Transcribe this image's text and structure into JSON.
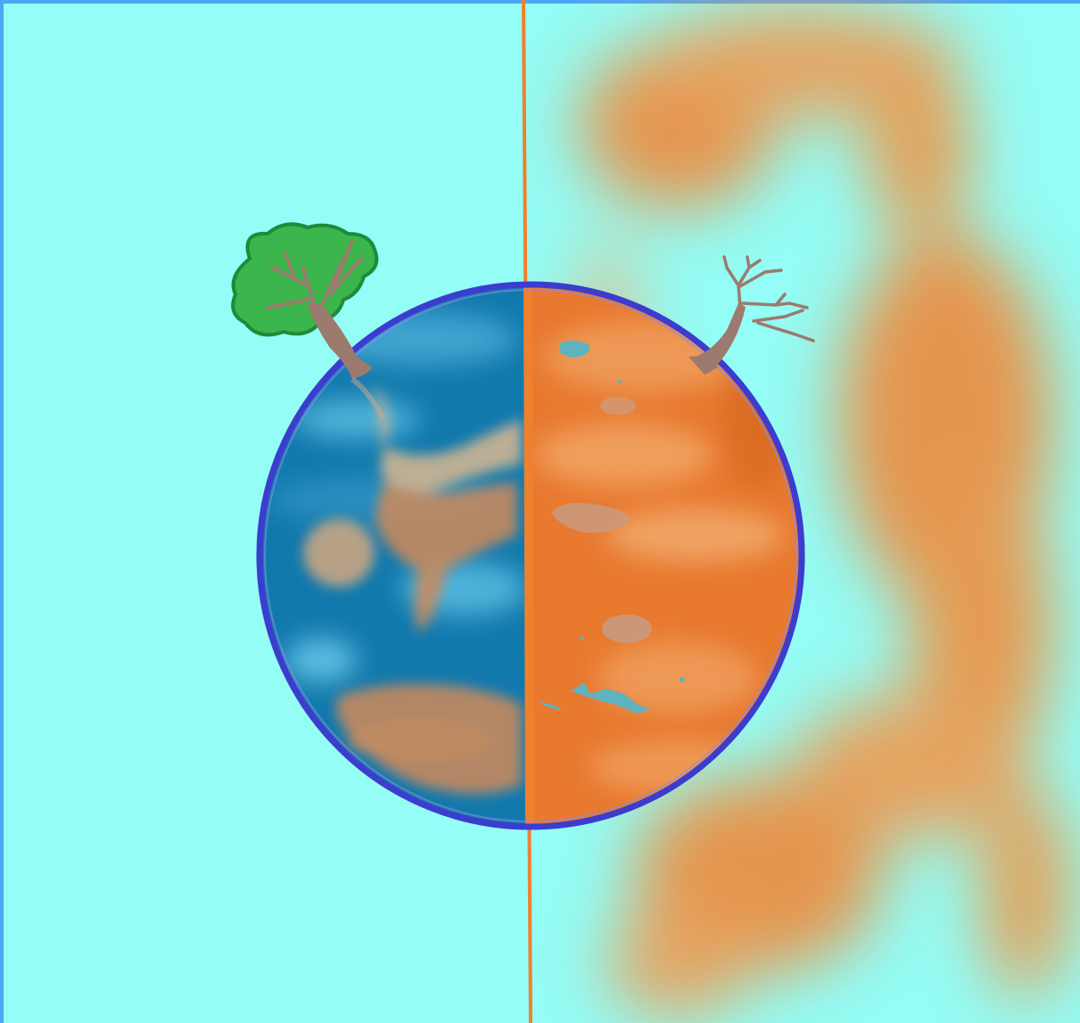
{
  "illustration": {
    "colors": {
      "frame_blue": "#4ea6f4",
      "sky_cyan": "#93fdf6",
      "healthy_ocean": "#1279ad",
      "healthy_ocean_light": "#3fa3cf",
      "planet_outline": "#3c3ccf",
      "scorched_orange": "#e8792f",
      "haze_orange": "#ef8a3a",
      "divider_orange": "#f0802e",
      "tree_green": "#3bb54c",
      "tree_green_outline": "#1f8a3a",
      "trunk_brown": "#9c7a6e",
      "dry_lake_teal": "#5fb3bf"
    },
    "icons": [
      "green-tree-icon",
      "dead-tree-icon",
      "earth-planet-icon",
      "divider-line-icon"
    ]
  }
}
